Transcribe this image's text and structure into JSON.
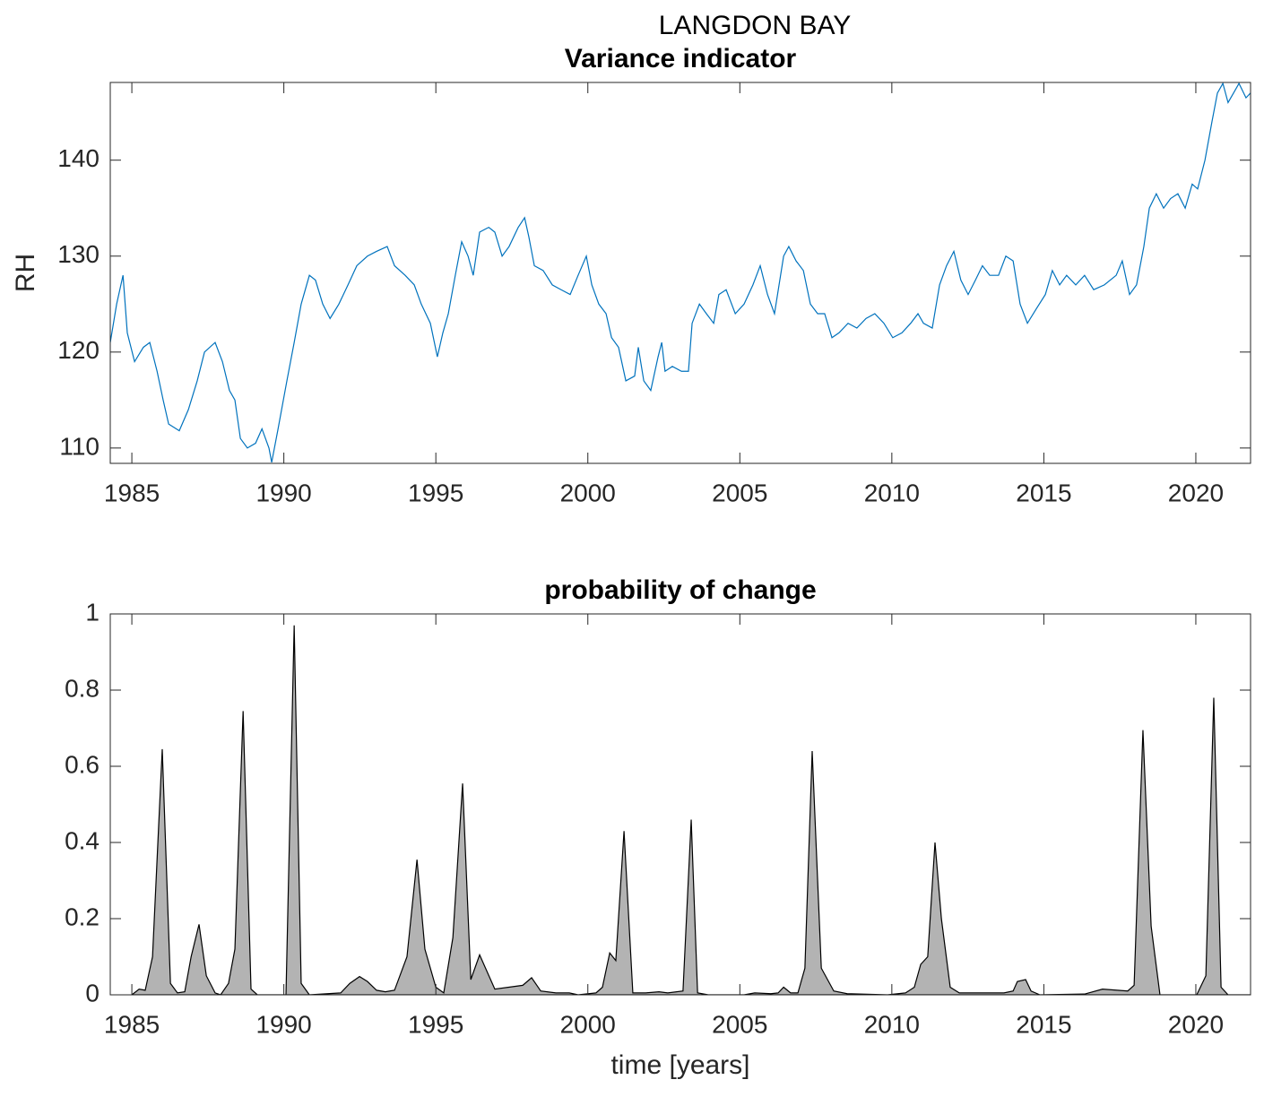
{
  "title": "LANGDON BAY",
  "chart_data": [
    {
      "type": "line",
      "title": "Variance indicator",
      "y_label": "RH",
      "color": "#0072bd",
      "xlim": [
        1984.29,
        2021.8
      ],
      "ylim": [
        108.4,
        148.1
      ],
      "xticks": [
        1985,
        1990,
        1995,
        2000,
        2005,
        2010,
        2015,
        2020
      ],
      "yticks": [
        110,
        120,
        130,
        140
      ],
      "x": [
        1984.29,
        1984.5,
        1984.71,
        1984.85,
        1985.09,
        1985.38,
        1985.59,
        1985.83,
        1986.03,
        1986.21,
        1986.56,
        1986.86,
        1987.15,
        1987.39,
        1987.74,
        1987.98,
        1988.21,
        1988.39,
        1988.57,
        1988.8,
        1989.07,
        1989.28,
        1989.51,
        1989.6,
        1989.81,
        1990.1,
        1990.34,
        1990.57,
        1990.84,
        1991.04,
        1991.28,
        1991.52,
        1991.81,
        1992.11,
        1992.4,
        1992.75,
        1993.05,
        1993.4,
        1993.64,
        1993.99,
        1994.29,
        1994.52,
        1994.82,
        1995.05,
        1995.23,
        1995.41,
        1995.64,
        1995.85,
        1996.06,
        1996.23,
        1996.44,
        1996.74,
        1996.94,
        1997.18,
        1997.41,
        1997.71,
        1997.92,
        1998.06,
        1998.24,
        1998.53,
        1998.83,
        1999.12,
        1999.42,
        1999.68,
        1999.95,
        2000.13,
        2000.36,
        2000.6,
        2000.78,
        2001.01,
        2001.25,
        2001.54,
        2001.66,
        2001.84,
        2002.07,
        2002.31,
        2002.43,
        2002.54,
        2002.78,
        2003.08,
        2003.31,
        2003.43,
        2003.67,
        2003.9,
        2004.14,
        2004.31,
        2004.55,
        2004.85,
        2005.14,
        2005.43,
        2005.67,
        2005.91,
        2006.14,
        2006.44,
        2006.61,
        2006.85,
        2007.09,
        2007.32,
        2007.56,
        2007.79,
        2008.03,
        2008.26,
        2008.56,
        2008.85,
        2009.15,
        2009.44,
        2009.74,
        2010.03,
        2010.33,
        2010.62,
        2010.86,
        2011.04,
        2011.33,
        2011.57,
        2011.8,
        2012.04,
        2012.27,
        2012.51,
        2012.75,
        2012.98,
        2013.22,
        2013.51,
        2013.75,
        2013.99,
        2014.22,
        2014.46,
        2014.75,
        2015.05,
        2015.28,
        2015.52,
        2015.75,
        2016.05,
        2016.34,
        2016.64,
        2016.99,
        2017.38,
        2017.58,
        2017.82,
        2018.05,
        2018.29,
        2018.47,
        2018.7,
        2018.94,
        2019.17,
        2019.41,
        2019.65,
        2019.88,
        2020.06,
        2020.3,
        2020.53,
        2020.71,
        2020.89,
        2021.06,
        2021.24,
        2021.42,
        2021.65,
        2021.8
      ],
      "values": [
        121,
        125,
        128,
        122,
        119,
        120.5,
        121,
        118,
        115,
        112.5,
        111.8,
        114,
        117,
        120,
        121,
        119,
        116,
        115,
        111,
        110,
        110.5,
        112,
        110,
        108.5,
        112,
        117,
        121,
        125,
        128,
        127.5,
        125,
        123.5,
        125,
        127,
        129,
        130,
        130.5,
        131,
        129,
        128,
        127,
        125,
        123,
        119.5,
        122,
        124,
        128,
        131.5,
        130,
        128,
        132.5,
        133,
        132.5,
        130,
        131,
        133,
        134,
        132,
        129,
        128.5,
        127,
        126.5,
        126,
        128,
        130,
        127,
        125,
        124,
        121.5,
        120.5,
        117,
        117.5,
        120.5,
        117,
        116,
        119.5,
        121,
        118,
        118.5,
        118,
        118,
        123,
        125,
        124,
        123,
        126,
        126.5,
        124,
        125,
        127,
        129,
        126,
        124,
        130,
        131,
        129.5,
        128.5,
        125,
        124,
        124,
        121.5,
        122,
        123,
        122.5,
        123.5,
        124,
        123,
        121.5,
        122,
        123,
        124,
        123,
        122.5,
        127,
        129,
        130.5,
        127.5,
        126,
        127.5,
        129,
        128,
        128,
        130,
        129.5,
        125,
        123,
        124.5,
        126,
        128.5,
        127,
        128,
        127,
        128,
        126.5,
        127,
        128,
        129.5,
        126,
        127,
        131,
        135,
        136.5,
        135,
        136,
        136.5,
        135,
        137.5,
        137,
        140,
        144,
        147,
        148,
        146,
        147,
        148,
        146.5,
        147
      ]
    },
    {
      "type": "area",
      "title": "probability of change",
      "x_label": "time [years]",
      "color": "#b3b3b3",
      "line_color": "#000000",
      "xlim": [
        1984.29,
        2021.8
      ],
      "ylim": [
        0,
        1
      ],
      "xticks": [
        1985,
        1990,
        1995,
        2000,
        2005,
        2010,
        2015,
        2020
      ],
      "yticks": [
        0,
        0.2,
        0.4,
        0.6,
        0.8,
        1
      ],
      "x": [
        1985.0,
        1985.24,
        1985.44,
        1985.68,
        1986.0,
        1986.27,
        1986.5,
        1986.74,
        1986.95,
        1987.21,
        1987.45,
        1987.74,
        1987.92,
        1988.18,
        1988.39,
        1988.66,
        1988.92,
        1989.13,
        1990.07,
        1990.34,
        1990.57,
        1990.84,
        1991.87,
        1992.17,
        1992.49,
        1992.75,
        1993.05,
        1993.34,
        1993.64,
        1994.05,
        1994.38,
        1994.64,
        1995.0,
        1995.26,
        1995.56,
        1995.88,
        1996.15,
        1996.44,
        1996.94,
        1997.86,
        1998.15,
        1998.45,
        1998.95,
        1999.39,
        1999.68,
        2000.27,
        2000.48,
        2000.72,
        2000.92,
        2001.19,
        2001.48,
        2001.9,
        2002.34,
        2002.63,
        2003.13,
        2003.4,
        2003.61,
        2003.96,
        2005.14,
        2005.49,
        2006.02,
        2006.26,
        2006.44,
        2006.67,
        2006.91,
        2007.14,
        2007.38,
        2007.68,
        2008.09,
        2008.53,
        2009.86,
        2010.45,
        2010.74,
        2010.95,
        2011.18,
        2011.42,
        2011.63,
        2011.92,
        2012.22,
        2013.69,
        2013.99,
        2014.13,
        2014.4,
        2014.58,
        2014.87,
        2016.34,
        2016.93,
        2017.76,
        2017.97,
        2018.26,
        2018.53,
        2018.82,
        2020.03,
        2020.33,
        2020.59,
        2020.83,
        2021.06,
        2021.8
      ],
      "values": [
        0,
        0.015,
        0.012,
        0.1,
        0.645,
        0.03,
        0.005,
        0.008,
        0.1,
        0.185,
        0.05,
        0.005,
        0,
        0.03,
        0.12,
        0.745,
        0.015,
        0,
        0,
        0.97,
        0.03,
        0,
        0.005,
        0.03,
        0.048,
        0.035,
        0.012,
        0.008,
        0.012,
        0.1,
        0.355,
        0.12,
        0.02,
        0.005,
        0.15,
        0.555,
        0.04,
        0.105,
        0.015,
        0.025,
        0.045,
        0.01,
        0.005,
        0.005,
        0,
        0.005,
        0.02,
        0.11,
        0.09,
        0.43,
        0.005,
        0.005,
        0.008,
        0.005,
        0.01,
        0.46,
        0.005,
        0,
        0,
        0.005,
        0.003,
        0.005,
        0.02,
        0.005,
        0.005,
        0.07,
        0.64,
        0.07,
        0.01,
        0.003,
        0,
        0.005,
        0.02,
        0.08,
        0.1,
        0.4,
        0.2,
        0.02,
        0.005,
        0.005,
        0.01,
        0.035,
        0.04,
        0.01,
        0,
        0.002,
        0.015,
        0.01,
        0.025,
        0.695,
        0.18,
        0,
        0,
        0.05,
        0.78,
        0.02,
        0,
        0
      ]
    }
  ]
}
